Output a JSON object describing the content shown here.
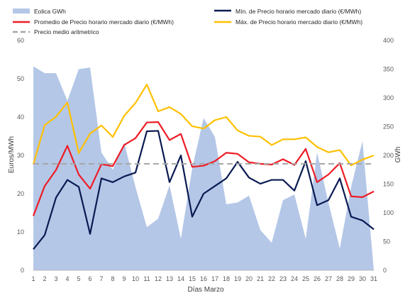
{
  "chart_data": {
    "type": "combo",
    "x": [
      1,
      2,
      3,
      4,
      5,
      6,
      7,
      8,
      9,
      10,
      11,
      12,
      13,
      14,
      15,
      16,
      17,
      18,
      19,
      20,
      21,
      22,
      23,
      24,
      25,
      26,
      27,
      28,
      29,
      30,
      31
    ],
    "xlabel": "Días Marzo",
    "ylabel_left": "Euros/MWh",
    "ylabel_right": "GWh",
    "ylim_left": [
      0,
      60
    ],
    "ylim_right": [
      0,
      400
    ],
    "yticks_left": [
      "0",
      "10",
      "20",
      "30",
      "40",
      "50",
      "60"
    ],
    "yticks_right": [
      "0",
      "50",
      "100",
      "150",
      "200",
      "250",
      "300",
      "350",
      "400"
    ],
    "grid": false,
    "legend_position": "top",
    "series": [
      {
        "name": "Eolica GWh",
        "kind": "area",
        "axis": "right",
        "color": "#b4c7e7",
        "values": [
          355,
          343,
          343,
          295,
          350,
          353,
          205,
          175,
          222,
          145,
          75,
          90,
          148,
          55,
          178,
          265,
          232,
          115,
          118,
          130,
          70,
          48,
          122,
          132,
          55,
          205,
          118,
          38,
          145,
          225,
          0
        ]
      },
      {
        "name": "Mín. de Precio horario mercado diario (€/MWh)",
        "kind": "line",
        "axis": "left",
        "color": "#0a1a52",
        "values": [
          5.5,
          9.2,
          19,
          23.6,
          21.8,
          9.5,
          24,
          23,
          24.5,
          25.5,
          36.3,
          36.4,
          23,
          30,
          14,
          20,
          22,
          24,
          28.3,
          24.2,
          22.6,
          23.6,
          23.6,
          20.8,
          28.5,
          17,
          18.3,
          24,
          14,
          13,
          10.7
        ]
      },
      {
        "name": "Promedio de Precio horario mercado diario (€/MWh)",
        "kind": "line",
        "axis": "left",
        "color": "#ee1c25",
        "values": [
          14.2,
          22,
          26.2,
          32.5,
          25,
          21.3,
          27.7,
          27.2,
          32.7,
          34.5,
          38.6,
          38.7,
          34,
          35.6,
          27,
          27.3,
          28.5,
          30.7,
          30.4,
          28.2,
          27.8,
          27.6,
          29,
          27.5,
          31.7,
          23,
          25,
          28,
          19.3,
          19.1,
          20.6
        ]
      },
      {
        "name": "Máx. de Precio horario mercado diario (€/MWh)",
        "kind": "line",
        "axis": "left",
        "color": "#ffc000",
        "values": [
          27.7,
          37.9,
          40.1,
          43.8,
          30.6,
          35.7,
          37.8,
          34.8,
          40.3,
          43.7,
          48.5,
          41.5,
          42.6,
          40.8,
          37.6,
          37,
          39.2,
          40,
          36.5,
          35.1,
          34.9,
          32.7,
          34.2,
          34.2,
          34.7,
          32.2,
          30.8,
          31.4,
          27.4,
          28.9,
          30
        ]
      },
      {
        "name": "Precio medio aritmetrico",
        "kind": "line",
        "axis": "left",
        "style": "dashed",
        "color": "#a6a6a6",
        "values": [
          27.8,
          27.8,
          27.8,
          27.8,
          27.8,
          27.8,
          27.8,
          27.8,
          27.8,
          27.8,
          27.8,
          27.8,
          27.8,
          27.8,
          27.8,
          27.8,
          27.8,
          27.8,
          27.8,
          27.8,
          27.8,
          27.8,
          27.8,
          27.8,
          27.8,
          27.8,
          27.8,
          27.8,
          27.8,
          27.8,
          27.8
        ]
      }
    ]
  }
}
